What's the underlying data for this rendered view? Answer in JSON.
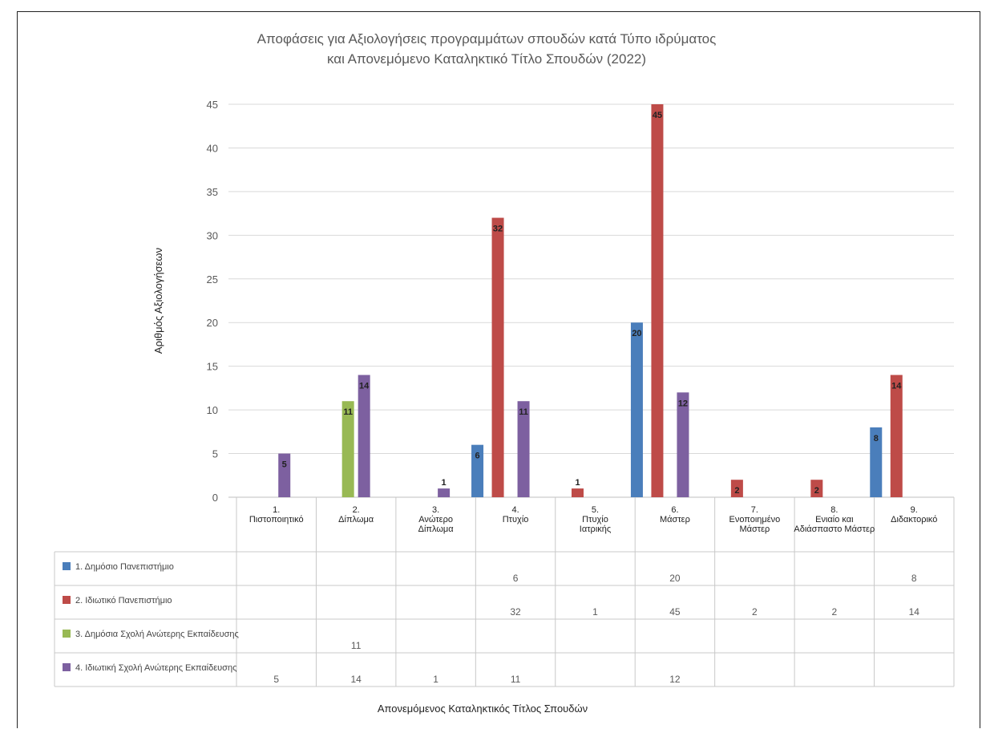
{
  "chart_data": {
    "type": "bar",
    "title_lines": [
      "Αποφάσεις για Αξιολογήσεις προγραμμάτων σπουδών κατά Τύπο ιδρύματος",
      "και Απονεμόμενο Καταληκτικό Τίτλο Σπουδών (2022)"
    ],
    "xlabel": "Απονεμόμενος Καταληκτικός Τίτλος Σπουδών",
    "ylabel": "Αριθμός Αξιολογήσεων",
    "ylim": [
      0,
      45
    ],
    "yticks": [
      0,
      5,
      10,
      15,
      20,
      25,
      30,
      35,
      40,
      45
    ],
    "grid": true,
    "legend_placement": "data-table",
    "categories": [
      [
        "1.",
        "Πιστοποιητικό"
      ],
      [
        "2.",
        "Δίπλωμα"
      ],
      [
        "3.",
        "Ανώτερο",
        "Δίπλωμα"
      ],
      [
        "4.",
        "Πτυχίο"
      ],
      [
        "5.",
        "Πτυχίο",
        "Ιατρικής"
      ],
      [
        "6.",
        "Μάστερ"
      ],
      [
        "7.",
        "Ενοποιημένο",
        "Μάστερ"
      ],
      [
        "8.",
        "Ενιαίο και",
        "Αδιάσπαστο Μάστερ"
      ],
      [
        "9.",
        "Διδακτορικό"
      ]
    ],
    "series": [
      {
        "name": "1. Δημόσιο Πανεπιστήμιο",
        "color": "#4a7ebb",
        "values": [
          null,
          null,
          null,
          6,
          null,
          20,
          null,
          null,
          8
        ]
      },
      {
        "name": "2. Ιδιωτικό Πανεπιστήμιο",
        "color": "#be4b48",
        "values": [
          null,
          null,
          null,
          32,
          1,
          45,
          2,
          2,
          14
        ]
      },
      {
        "name": "3. Δημόσια Σχολή Ανώτερης Εκπαίδευσης",
        "color": "#98b954",
        "values": [
          null,
          11,
          null,
          null,
          null,
          null,
          null,
          null,
          null
        ]
      },
      {
        "name": "4. Ιδιωτική Σχολή Ανώτερης Εκπαίδευσης",
        "color": "#7d60a0",
        "values": [
          5,
          14,
          1,
          11,
          null,
          12,
          null,
          null,
          null
        ]
      }
    ]
  }
}
